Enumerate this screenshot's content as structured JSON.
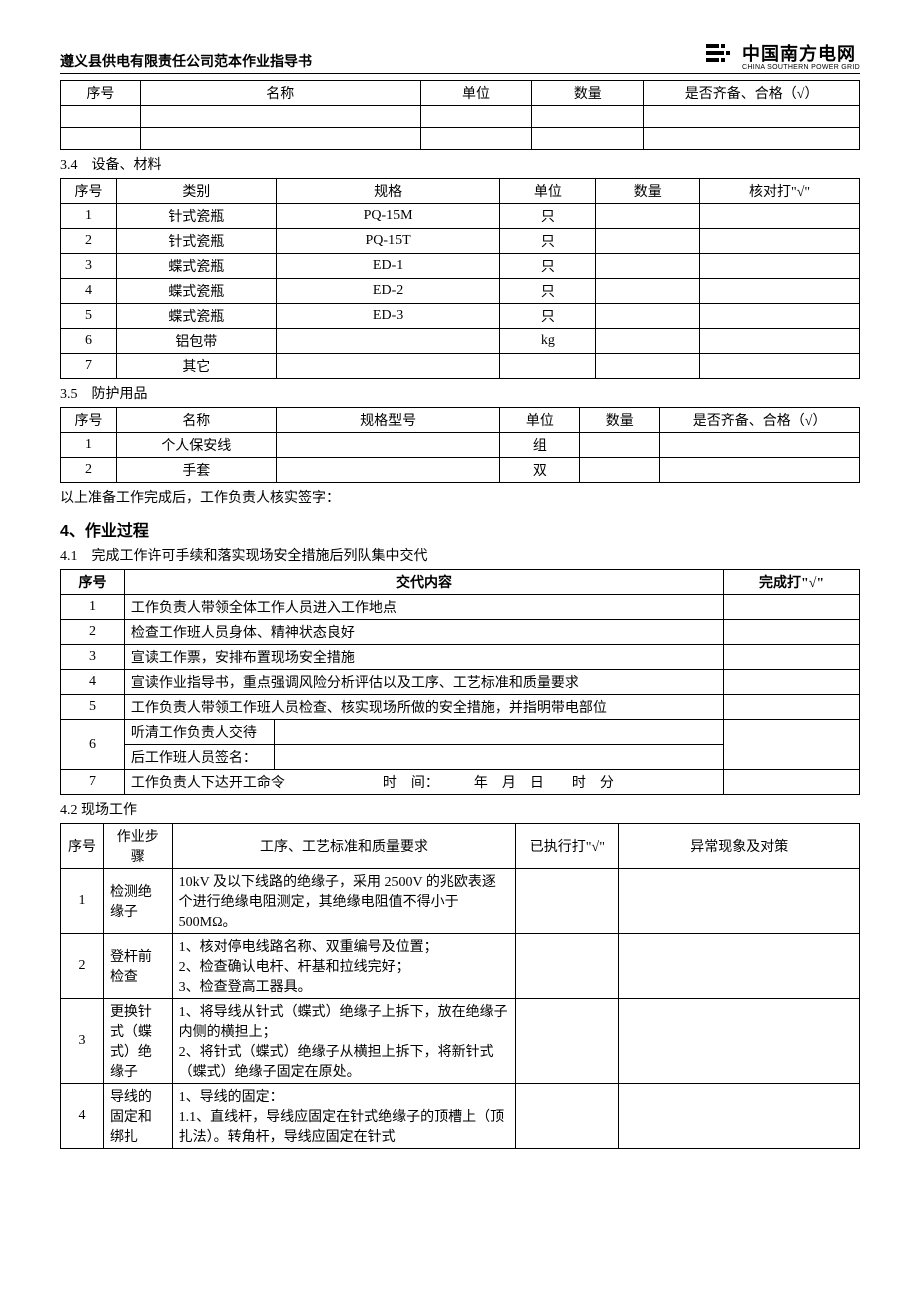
{
  "header": {
    "doc_title": "遵义县供电有限责任公司范本作业指导书",
    "logo_cn": "中国南方电网",
    "logo_en": "CHINA SOUTHERN POWER GRID"
  },
  "table_top": {
    "headers": [
      "序号",
      "名称",
      "单位",
      "数量",
      "是否齐备、合格（√）"
    ],
    "rows": [
      [
        "",
        "",
        "",
        "",
        ""
      ],
      [
        "",
        "",
        "",
        "",
        ""
      ]
    ],
    "widths": [
      "10%",
      "35%",
      "14%",
      "14%",
      "27%"
    ]
  },
  "section_3_4": {
    "label": "3.4　设备、材料",
    "headers": [
      "序号",
      "类别",
      "规格",
      "单位",
      "数量",
      "核对打\"√\""
    ],
    "widths": [
      "7%",
      "20%",
      "28%",
      "12%",
      "13%",
      "20%"
    ],
    "rows": [
      [
        "1",
        "针式瓷瓶",
        "PQ-15M",
        "只",
        "",
        ""
      ],
      [
        "2",
        "针式瓷瓶",
        "PQ-15T",
        "只",
        "",
        ""
      ],
      [
        "3",
        "蝶式瓷瓶",
        "ED-1",
        "只",
        "",
        ""
      ],
      [
        "4",
        "蝶式瓷瓶",
        "ED-2",
        "只",
        "",
        ""
      ],
      [
        "5",
        "蝶式瓷瓶",
        "ED-3",
        "只",
        "",
        ""
      ],
      [
        "6",
        "铝包带",
        "",
        "kg",
        "",
        ""
      ],
      [
        "7",
        "其它",
        "",
        "",
        "",
        ""
      ]
    ]
  },
  "section_3_5": {
    "label": "3.5　防护用品",
    "headers": [
      "序号",
      "名称",
      "规格型号",
      "单位",
      "数量",
      "是否齐备、合格（√）"
    ],
    "widths": [
      "7%",
      "20%",
      "28%",
      "10%",
      "10%",
      "25%"
    ],
    "rows": [
      [
        "1",
        "个人保安线",
        "",
        "组",
        "",
        ""
      ],
      [
        "2",
        "手套",
        "",
        "双",
        "",
        ""
      ]
    ]
  },
  "note_after_35": "以上准备工作完成后，工作负责人核实签字：",
  "section_4": {
    "heading": "4、作业过程"
  },
  "section_4_1": {
    "label": "4.1　完成工作许可手续和落实现场安全措施后列队集中交代",
    "headers": [
      "序号",
      "交代内容",
      "完成打\"√\""
    ],
    "widths": [
      "8%",
      "75%",
      "17%"
    ],
    "rows": [
      [
        "1",
        "工作负责人带领全体工作人员进入工作地点",
        ""
      ],
      [
        "2",
        "检查工作班人员身体、精神状态良好",
        ""
      ],
      [
        "3",
        "宣读工作票，安排布置现场安全措施",
        ""
      ],
      [
        "4",
        "宣读作业指导书，重点强调风险分析评估以及工序、工艺标准和质量要求",
        ""
      ],
      [
        "5",
        "工作负责人带领工作班人员检查、核实现场所做的安全措施，并指明带电部位",
        ""
      ],
      [
        "6",
        "听清工作负责人交待后工作班人员签名：",
        ""
      ],
      [
        "7",
        "工作负责人下达开工命令　　　　　　　时　间：　　　年　月　日　　时　分",
        ""
      ]
    ]
  },
  "section_4_2": {
    "label": "4.2 现场工作",
    "headers": [
      "序号",
      "作业步骤",
      "工序、工艺标准和质量要求",
      "已执行打\"√\"",
      "异常现象及对策"
    ],
    "widths": [
      "5%",
      "8%",
      "40%",
      "12%",
      "28%"
    ],
    "rows": [
      [
        "1",
        "检测绝缘子",
        "10kV 及以下线路的绝缘子，采用 2500V 的兆欧表逐个进行绝缘电阻测定，其绝缘电阻值不得小于 500MΩ。",
        "",
        ""
      ],
      [
        "2",
        "登杆前检查",
        "1、核对停电线路名称、双重编号及位置；\n2、检查确认电杆、杆基和拉线完好；\n3、检查登高工器具。",
        "",
        ""
      ],
      [
        "3",
        "更换针式（蝶式）绝缘子",
        "1、将导线从针式（蝶式）绝缘子上拆下，放在绝缘子内侧的横担上；\n2、将针式（蝶式）绝缘子从横担上拆下，将新针式（蝶式）绝缘子固定在原处。",
        "",
        ""
      ],
      [
        "4",
        "导线的固定和绑扎",
        "1、导线的固定：\n1.1、直线杆，导线应固定在针式绝缘子的顶槽上（顶扎法）。转角杆，导线应固定在针式",
        "",
        ""
      ]
    ]
  }
}
